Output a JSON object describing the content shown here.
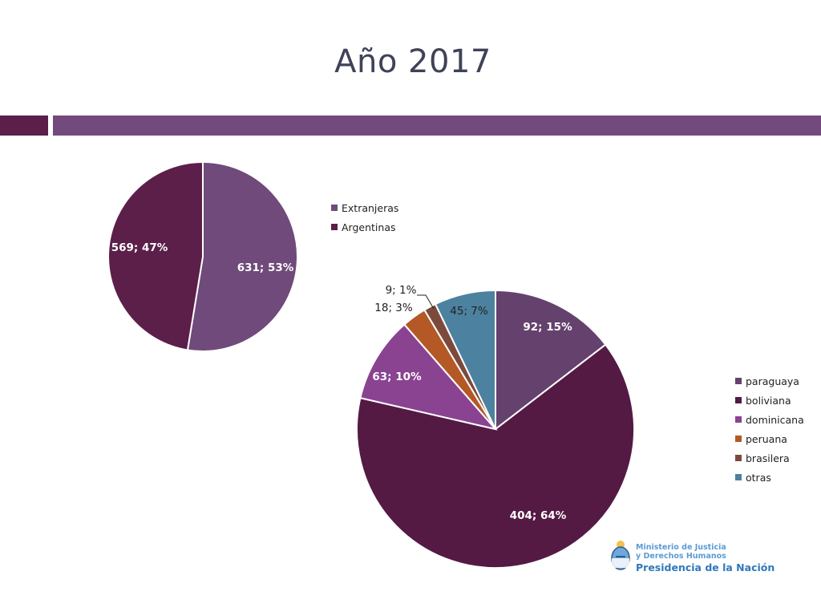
{
  "title": "Año 2017",
  "chart_data": [
    {
      "type": "pie",
      "slices": [
        {
          "name": "Extranjeras",
          "value": 631,
          "percent": 53,
          "label": "631; 53%",
          "color": "#6f4a7b"
        },
        {
          "name": "Argentinas",
          "value": 569,
          "percent": 47,
          "label": "569; 47%",
          "color": "#5c1f4a"
        }
      ],
      "legend": "right"
    },
    {
      "type": "pie",
      "slices": [
        {
          "name": "paraguaya",
          "value": 92,
          "percent": 15,
          "label": "92; 15%",
          "color": "#65416e"
        },
        {
          "name": "boliviana",
          "value": 404,
          "percent": 64,
          "label": "404; 64%",
          "color": "#541a43"
        },
        {
          "name": "dominicana",
          "value": 63,
          "percent": 10,
          "label": "63; 10%",
          "color": "#8a4391"
        },
        {
          "name": "peruana",
          "value": 18,
          "percent": 3,
          "label": "18; 3%",
          "color": "#b45826"
        },
        {
          "name": "brasilera",
          "value": 9,
          "percent": 1,
          "label": "9; 1%",
          "color": "#7c4a3c"
        },
        {
          "name": "otras",
          "value": 45,
          "percent": 7,
          "label": "45; 7%",
          "color": "#4d81a0"
        }
      ],
      "legend": "right"
    }
  ],
  "logo": {
    "line1": "Ministerio de Justicia",
    "line2": "y Derechos Humanos",
    "line3": "Presidencia de la Nación"
  }
}
